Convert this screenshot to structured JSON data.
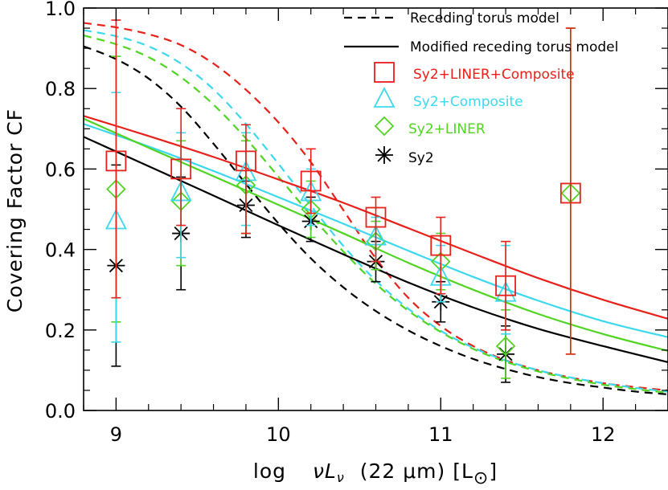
{
  "chart_data": {
    "type": "scatter",
    "title": "",
    "xlabel_parts": [
      "log",
      "νL",
      "ν",
      "(22 μm) [L",
      "⊙",
      "]"
    ],
    "ylabel": "Covering Factor CF",
    "xlim": [
      8.8,
      12.4
    ],
    "ylim": [
      0.0,
      1.0
    ],
    "x_ticks": [
      9,
      10,
      11,
      12
    ],
    "x_tick_labels": [
      "9",
      "10",
      "11",
      "12"
    ],
    "y_ticks": [
      0.0,
      0.2,
      0.4,
      0.6,
      0.8,
      1.0
    ],
    "y_tick_labels": [
      "0.0",
      "0.2",
      "0.4",
      "0.6",
      "0.8",
      "1.0"
    ],
    "x_minor_step": 0.2,
    "y_minor_step": 0.05,
    "legend_position": "top-right",
    "legend": [
      {
        "label": "Receding torus model",
        "kind": "line",
        "dash": "dashed",
        "color": "#000000"
      },
      {
        "label": "Modified receding torus model",
        "kind": "line",
        "dash": "solid",
        "color": "#000000"
      },
      {
        "label": "Sy2+LINER+Composite",
        "kind": "marker",
        "marker": "square",
        "color": "#e8201a"
      },
      {
        "label": "Sy2+Composite",
        "kind": "marker",
        "marker": "triangle",
        "color": "#3cd8ee"
      },
      {
        "label": "Sy2+LINER",
        "kind": "marker",
        "marker": "diamond",
        "color": "#50d422"
      },
      {
        "label": "Sy2",
        "kind": "marker",
        "marker": "asterisk",
        "color": "#000000"
      }
    ],
    "series": [
      {
        "name": "Sy2+LINER+Composite",
        "color": "#e8201a",
        "marker": "square",
        "x_offset": 0.0,
        "x": [
          9.0,
          9.4,
          9.8,
          10.2,
          10.6,
          11.0,
          11.4,
          11.8
        ],
        "y": [
          0.62,
          0.6,
          0.62,
          0.57,
          0.48,
          0.41,
          0.31,
          0.54
        ],
        "err_low": [
          0.34,
          0.14,
          0.18,
          0.08,
          0.11,
          0.12,
          0.11,
          0.4
        ],
        "err_high": [
          0.35,
          0.15,
          0.09,
          0.08,
          0.05,
          0.07,
          0.11,
          0.41
        ]
      },
      {
        "name": "Sy2+Composite",
        "color": "#3cd8ee",
        "marker": "triangle",
        "x_offset": 0.0,
        "x": [
          9.0,
          9.4,
          9.8,
          10.2,
          10.6,
          11.0,
          11.4
        ],
        "y": [
          0.47,
          0.54,
          0.59,
          0.54,
          0.43,
          0.33,
          0.29
        ],
        "err_low": [
          0.3,
          0.16,
          0.13,
          0.08,
          0.06,
          0.06,
          0.1
        ],
        "err_high": [
          0.32,
          0.15,
          0.1,
          0.06,
          0.05,
          0.08,
          0.12
        ]
      },
      {
        "name": "Sy2+LINER",
        "color": "#50d422",
        "marker": "diamond",
        "x_offset": 0.0,
        "x": [
          9.0,
          9.4,
          9.8,
          10.2,
          10.6,
          11.0,
          11.4,
          11.8
        ],
        "y": [
          0.55,
          0.52,
          0.56,
          0.5,
          0.42,
          0.37,
          0.16,
          0.54
        ],
        "err_low": [
          0.33,
          0.16,
          0.12,
          0.07,
          0.07,
          0.07,
          0.08,
          0.4
        ],
        "err_high": [
          0.33,
          0.15,
          0.11,
          0.07,
          0.05,
          0.07,
          0.09,
          0.41
        ]
      },
      {
        "name": "Sy2",
        "color": "#000000",
        "marker": "asterisk",
        "x_offset": 0.0,
        "x": [
          9.0,
          9.4,
          9.8,
          10.2,
          10.6,
          11.0,
          11.4
        ],
        "y": [
          0.36,
          0.44,
          0.51,
          0.47,
          0.37,
          0.27,
          0.14
        ],
        "err_low": [
          0.25,
          0.14,
          0.08,
          0.05,
          0.05,
          0.05,
          0.07
        ],
        "err_high": [
          0.25,
          0.14,
          0.06,
          0.06,
          0.05,
          0.05,
          0.07
        ]
      }
    ],
    "model_curves": [
      {
        "name": "Receding torus model (Sy2+LINER+Composite)",
        "color": "#e8201a",
        "dash": "dashed",
        "x": [
          8.8,
          9.0,
          9.2,
          9.4,
          9.6,
          9.8,
          10.0,
          10.2,
          10.4,
          10.6,
          10.8,
          11.0,
          11.2,
          11.4,
          11.6,
          11.8,
          12.0,
          12.2,
          12.4
        ],
        "y": [
          0.963,
          0.952,
          0.935,
          0.908,
          0.862,
          0.797,
          0.716,
          0.617,
          0.498,
          0.378,
          0.28,
          0.21,
          0.16,
          0.125,
          0.1,
          0.082,
          0.068,
          0.058,
          0.05
        ]
      },
      {
        "name": "Receding torus model (Sy2+Composite)",
        "color": "#3cd8ee",
        "dash": "dashed",
        "x": [
          8.8,
          9.0,
          9.2,
          9.4,
          9.6,
          9.8,
          10.0,
          10.2,
          10.4,
          10.6,
          10.8,
          11.0,
          11.2,
          11.4,
          11.6,
          11.8,
          12.0,
          12.2,
          12.4
        ],
        "y": [
          0.945,
          0.93,
          0.905,
          0.862,
          0.798,
          0.712,
          0.613,
          0.509,
          0.409,
          0.323,
          0.253,
          0.198,
          0.156,
          0.124,
          0.1,
          0.082,
          0.068,
          0.056,
          0.047
        ]
      },
      {
        "name": "Receding torus model (Sy2+LINER)",
        "color": "#50d422",
        "dash": "dashed",
        "x": [
          8.8,
          9.0,
          9.2,
          9.4,
          9.6,
          9.8,
          10.0,
          10.2,
          10.4,
          10.6,
          10.8,
          11.0,
          11.2,
          11.4,
          11.6,
          11.8,
          12.0,
          12.2,
          12.4
        ],
        "y": [
          0.932,
          0.91,
          0.878,
          0.828,
          0.76,
          0.676,
          0.581,
          0.485,
          0.395,
          0.315,
          0.248,
          0.195,
          0.153,
          0.121,
          0.097,
          0.079,
          0.064,
          0.053,
          0.044
        ]
      },
      {
        "name": "Receding torus model (Sy2)",
        "color": "#000000",
        "dash": "dashed",
        "x": [
          8.8,
          9.0,
          9.2,
          9.4,
          9.6,
          9.8,
          10.0,
          10.2,
          10.4,
          10.6,
          10.8,
          11.0,
          11.2,
          11.4,
          11.6,
          11.8,
          12.0,
          12.2,
          12.4
        ],
        "y": [
          0.905,
          0.873,
          0.825,
          0.755,
          0.663,
          0.563,
          0.465,
          0.378,
          0.306,
          0.247,
          0.199,
          0.16,
          0.128,
          0.103,
          0.083,
          0.068,
          0.057,
          0.047,
          0.04
        ]
      },
      {
        "name": "Modified receding torus model (Sy2+LINER+Composite)",
        "color": "#e8201a",
        "dash": "solid",
        "x": [
          8.8,
          9.2,
          9.6,
          10.0,
          10.4,
          10.8,
          11.2,
          11.6,
          12.0,
          12.4
        ],
        "y": [
          0.732,
          0.682,
          0.63,
          0.574,
          0.516,
          0.453,
          0.39,
          0.329,
          0.275,
          0.228
        ]
      },
      {
        "name": "Modified receding torus model (Sy2+Composite)",
        "color": "#3cd8ee",
        "dash": "solid",
        "x": [
          8.8,
          9.2,
          9.6,
          10.0,
          10.4,
          10.8,
          11.2,
          11.6,
          12.0,
          12.4
        ],
        "y": [
          0.712,
          0.656,
          0.595,
          0.53,
          0.464,
          0.397,
          0.332,
          0.273,
          0.222,
          0.182
        ]
      },
      {
        "name": "Modified receding torus model (Sy2+LINER)",
        "color": "#50d422",
        "dash": "solid",
        "x": [
          8.8,
          9.2,
          9.6,
          10.0,
          10.4,
          10.8,
          11.2,
          11.6,
          12.0,
          12.4
        ],
        "y": [
          0.725,
          0.653,
          0.582,
          0.511,
          0.44,
          0.367,
          0.3,
          0.24,
          0.19,
          0.148
        ]
      },
      {
        "name": "Modified receding torus model (Sy2)",
        "color": "#000000",
        "dash": "solid",
        "x": [
          8.8,
          9.2,
          9.6,
          10.0,
          10.4,
          10.8,
          11.2,
          11.6,
          12.0,
          12.4
        ],
        "y": [
          0.68,
          0.607,
          0.534,
          0.46,
          0.388,
          0.318,
          0.256,
          0.203,
          0.16,
          0.12
        ]
      }
    ]
  }
}
